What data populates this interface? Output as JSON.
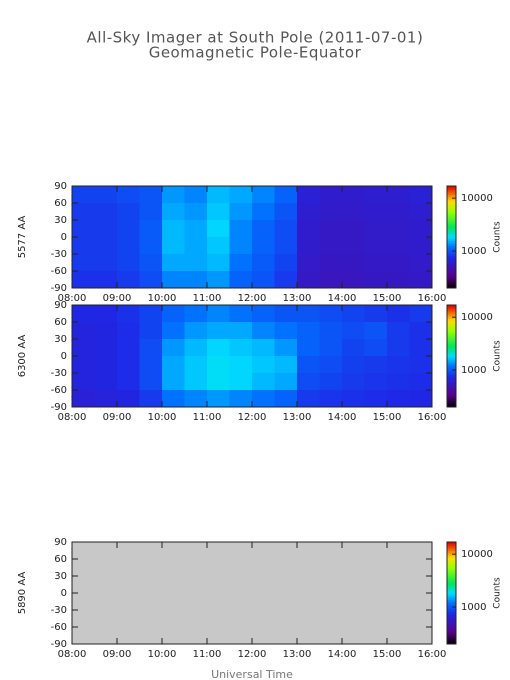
{
  "title": "All-Sky Imager at South Pole (2011-07-01)",
  "subtitle": "Geomagnetic Pole-Equator",
  "xlabel": "Universal Time",
  "chart_data": [
    {
      "type": "heatmap",
      "ylabel": "5577 AA",
      "x": [
        8.25,
        8.75,
        9.25,
        9.75,
        10.25,
        10.75,
        11.25,
        11.75,
        12.25,
        12.75,
        13.25,
        13.75,
        14.25,
        14.75,
        15.25,
        15.75
      ],
      "y": [
        75,
        45,
        15,
        -15,
        -45,
        -75
      ],
      "z": [
        [
          900,
          900,
          950,
          1000,
          1400,
          1300,
          1600,
          1500,
          1300,
          1100,
          650,
          600,
          600,
          620,
          620,
          650
        ],
        [
          850,
          850,
          900,
          1000,
          1500,
          1400,
          1700,
          1400,
          1200,
          1000,
          620,
          580,
          580,
          600,
          600,
          620
        ],
        [
          850,
          850,
          900,
          1050,
          1600,
          1500,
          1800,
          1300,
          1100,
          950,
          600,
          560,
          560,
          580,
          580,
          600
        ],
        [
          850,
          850,
          900,
          1050,
          1600,
          1500,
          1700,
          1300,
          1100,
          950,
          600,
          560,
          560,
          580,
          580,
          600
        ],
        [
          850,
          850,
          900,
          1000,
          1500,
          1500,
          1600,
          1200,
          1050,
          900,
          580,
          550,
          550,
          570,
          570,
          590
        ],
        [
          800,
          800,
          850,
          950,
          1300,
          1300,
          1400,
          1100,
          1000,
          850,
          560,
          530,
          530,
          550,
          550,
          570
        ]
      ],
      "xlim": [
        8,
        16
      ],
      "ylim": [
        -90,
        90
      ],
      "xticks": [
        {
          "value": 8,
          "label": "08:00"
        },
        {
          "value": 9,
          "label": "09:00"
        },
        {
          "value": 10,
          "label": "10:00"
        },
        {
          "value": 11,
          "label": "11:00"
        },
        {
          "value": 12,
          "label": "12:00"
        },
        {
          "value": 13,
          "label": "13:00"
        },
        {
          "value": 14,
          "label": "14:00"
        },
        {
          "value": 15,
          "label": "15:00"
        },
        {
          "value": 16,
          "label": "16:00"
        }
      ],
      "yticks": [
        -90,
        -60,
        -30,
        0,
        30,
        60,
        90
      ],
      "missing_color": "#c8c8c8",
      "colorbar": {
        "label": "Counts",
        "lim": [
          200,
          17000
        ],
        "ticks": [
          1000,
          10000
        ],
        "log": true
      }
    },
    {
      "type": "heatmap",
      "ylabel": "6300 AA",
      "x": [
        8.25,
        8.75,
        9.25,
        9.75,
        10.25,
        10.75,
        11.25,
        11.75,
        12.25,
        12.75,
        13.25,
        13.75,
        14.25,
        14.75,
        15.25,
        15.75
      ],
      "y": [
        75,
        45,
        15,
        -15,
        -45,
        -75
      ],
      "z": [
        [
          750,
          750,
          800,
          900,
          1100,
          1200,
          1300,
          1200,
          1100,
          1000,
          1000,
          950,
          900,
          850,
          800,
          850
        ],
        [
          700,
          720,
          780,
          900,
          1200,
          1400,
          1500,
          1500,
          1300,
          1200,
          1100,
          1000,
          950,
          1000,
          850,
          800
        ],
        [
          700,
          720,
          780,
          950,
          1400,
          1600,
          1800,
          1700,
          1600,
          1400,
          1100,
          1000,
          900,
          950,
          850,
          800
        ],
        [
          700,
          720,
          780,
          950,
          1500,
          1700,
          1900,
          1800,
          1700,
          1600,
          1000,
          950,
          880,
          850,
          820,
          800
        ],
        [
          700,
          720,
          780,
          950,
          1500,
          1700,
          1900,
          1800,
          1600,
          1500,
          950,
          900,
          850,
          820,
          800,
          780
        ],
        [
          650,
          680,
          720,
          850,
          1200,
          1300,
          1400,
          1300,
          1200,
          1100,
          850,
          820,
          800,
          780,
          760,
          750
        ]
      ],
      "xlim": [
        8,
        16
      ],
      "ylim": [
        -90,
        90
      ],
      "xticks": [
        {
          "value": 8,
          "label": "08:00"
        },
        {
          "value": 9,
          "label": "09:00"
        },
        {
          "value": 10,
          "label": "10:00"
        },
        {
          "value": 11,
          "label": "11:00"
        },
        {
          "value": 12,
          "label": "12:00"
        },
        {
          "value": 13,
          "label": "13:00"
        },
        {
          "value": 14,
          "label": "14:00"
        },
        {
          "value": 15,
          "label": "15:00"
        },
        {
          "value": 16,
          "label": "16:00"
        }
      ],
      "yticks": [
        -90,
        -60,
        -30,
        0,
        30,
        60,
        90
      ],
      "missing_color": "#c8c8c8",
      "colorbar": {
        "label": "Counts",
        "lim": [
          200,
          17000
        ],
        "ticks": [
          1000,
          10000
        ],
        "log": true
      }
    },
    {
      "type": "heatmap",
      "ylabel": "5890 AA",
      "x": [
        8.25,
        8.75,
        9.25,
        9.75,
        10.25,
        10.75,
        11.25,
        11.75,
        12.25,
        12.75,
        13.25,
        13.75,
        14.25,
        14.75,
        15.25,
        15.75
      ],
      "y": [
        75,
        45,
        15,
        -15,
        -45,
        -75
      ],
      "z": [
        [
          null,
          null,
          null,
          null,
          null,
          null,
          null,
          null,
          null,
          null,
          null,
          null,
          null,
          null,
          null,
          null
        ],
        [
          null,
          null,
          null,
          null,
          null,
          null,
          null,
          null,
          null,
          null,
          null,
          null,
          null,
          null,
          null,
          null
        ],
        [
          null,
          null,
          null,
          null,
          null,
          null,
          null,
          null,
          null,
          null,
          null,
          null,
          null,
          null,
          null,
          null
        ],
        [
          null,
          null,
          null,
          null,
          null,
          null,
          null,
          null,
          null,
          null,
          null,
          null,
          null,
          null,
          null,
          null
        ],
        [
          null,
          null,
          null,
          null,
          null,
          null,
          null,
          null,
          null,
          null,
          null,
          null,
          null,
          null,
          null,
          null
        ],
        [
          null,
          null,
          null,
          null,
          null,
          null,
          null,
          null,
          null,
          null,
          null,
          null,
          null,
          null,
          null,
          null
        ]
      ],
      "xlim": [
        8,
        16
      ],
      "ylim": [
        -90,
        90
      ],
      "xticks": [
        {
          "value": 8,
          "label": "08:00"
        },
        {
          "value": 9,
          "label": "09:00"
        },
        {
          "value": 10,
          "label": "10:00"
        },
        {
          "value": 11,
          "label": "11:00"
        },
        {
          "value": 12,
          "label": "12:00"
        },
        {
          "value": 13,
          "label": "13:00"
        },
        {
          "value": 14,
          "label": "14:00"
        },
        {
          "value": 15,
          "label": "15:00"
        },
        {
          "value": 16,
          "label": "16:00"
        }
      ],
      "yticks": [
        -90,
        -60,
        -30,
        0,
        30,
        60,
        90
      ],
      "missing_color": "#c8c8c8",
      "colorbar": {
        "label": "Counts",
        "lim": [
          200,
          17000
        ],
        "ticks": [
          1000,
          10000
        ],
        "log": true
      }
    }
  ]
}
